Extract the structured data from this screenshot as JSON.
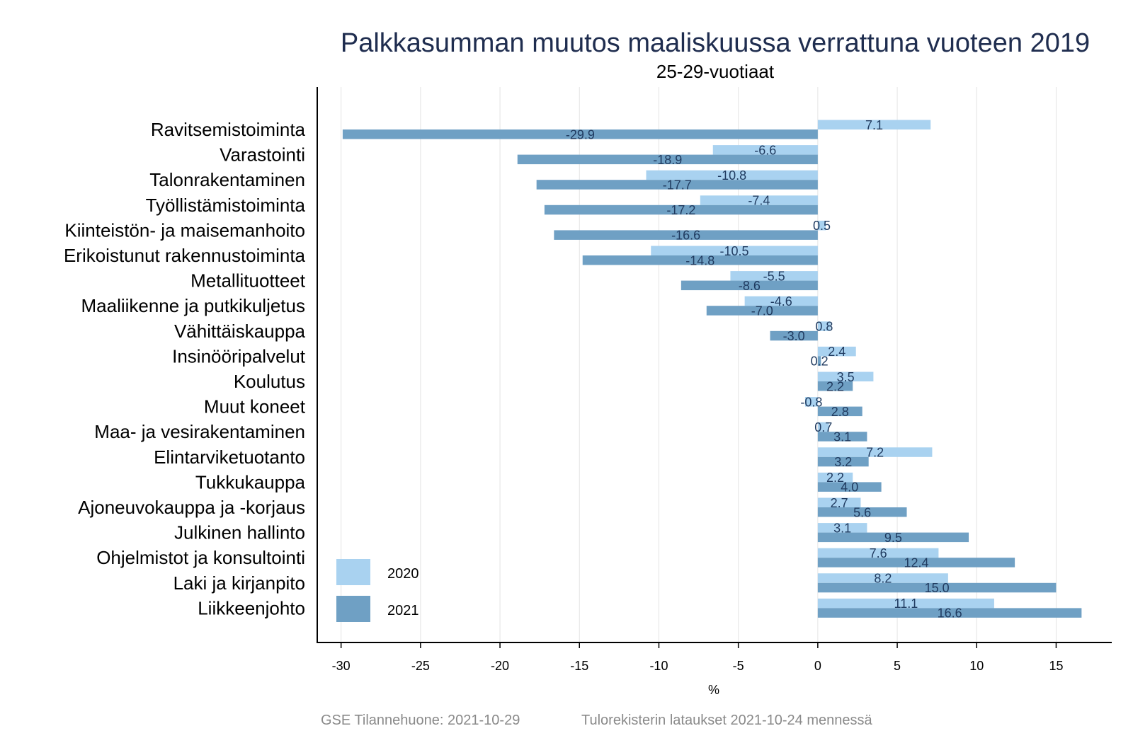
{
  "footer": {
    "left": "GSE Tilannehuone: 2021-10-29",
    "right": "Tulorekisterin lataukset 2021-10-24 mennessä"
  },
  "chart_data": {
    "type": "bar",
    "orientation": "horizontal",
    "title": "Palkkasumman muutos maaliskuussa verrattuna vuoteen 2019",
    "subtitle": "25-29-vuotiaat",
    "xlabel": "%",
    "ylabel": "",
    "xlim": [
      -31.5,
      18.5
    ],
    "xticks": [
      -30,
      -25,
      -20,
      -15,
      -10,
      -5,
      0,
      5,
      10,
      15
    ],
    "grid": "vertical",
    "legend_position": "bottom-left",
    "categories": [
      "Ravitsemistoiminta",
      "Varastointi",
      "Talonrakentaminen",
      "Työllistämistoiminta",
      "Kiinteistön- ja maisemanhoito",
      "Erikoistunut rakennustoiminta",
      "Metallituotteet",
      "Maaliikenne ja putkikuljetus",
      "Vähittäiskauppa",
      "Insinööripalvelut",
      "Koulutus",
      "Muut koneet",
      "Maa- ja vesirakentaminen",
      "Elintarviketuotanto",
      "Tukkukauppa",
      "Ajoneuvokauppa ja -korjaus",
      "Julkinen hallinto",
      "Ohjelmistot ja konsultointi",
      "Laki ja kirjanpito",
      "Liikkeenjohto"
    ],
    "series": [
      {
        "name": "2020",
        "color": "#a9d2f0",
        "values": [
          7.1,
          -6.6,
          -10.8,
          -7.4,
          0.5,
          -10.5,
          -5.5,
          -4.6,
          0.8,
          2.4,
          3.5,
          -0.8,
          0.7,
          7.2,
          2.2,
          2.7,
          3.1,
          7.6,
          8.2,
          11.1
        ],
        "labels": [
          "7.1",
          "-6.6",
          "-10.8",
          "-7.4",
          "0.5",
          "-10.5",
          "-5.5",
          "-4.6",
          "0.8",
          "2.4",
          "3.5",
          "-0.8",
          "0.7",
          "7.2",
          "2.2",
          "2.7",
          "3.1",
          "7.6",
          "8.2",
          "11.1"
        ]
      },
      {
        "name": "2021",
        "color": "#6fa0c4",
        "values": [
          -29.9,
          -18.9,
          -17.7,
          -17.2,
          -16.6,
          -14.8,
          -8.6,
          -7.0,
          -3.0,
          0.2,
          2.2,
          2.8,
          3.1,
          3.2,
          4.0,
          5.6,
          9.5,
          12.4,
          15.0,
          16.6
        ],
        "labels": [
          "-29.9",
          "-18.9",
          "-17.7",
          "-17.2",
          "-16.6",
          "-14.8",
          "-8.6",
          "-7.0",
          "-3.0",
          "0.2",
          "2.2",
          "2.8",
          "3.1",
          "3.2",
          "4.0",
          "5.6",
          "9.5",
          "12.4",
          "15.0",
          "16.6"
        ]
      }
    ]
  }
}
